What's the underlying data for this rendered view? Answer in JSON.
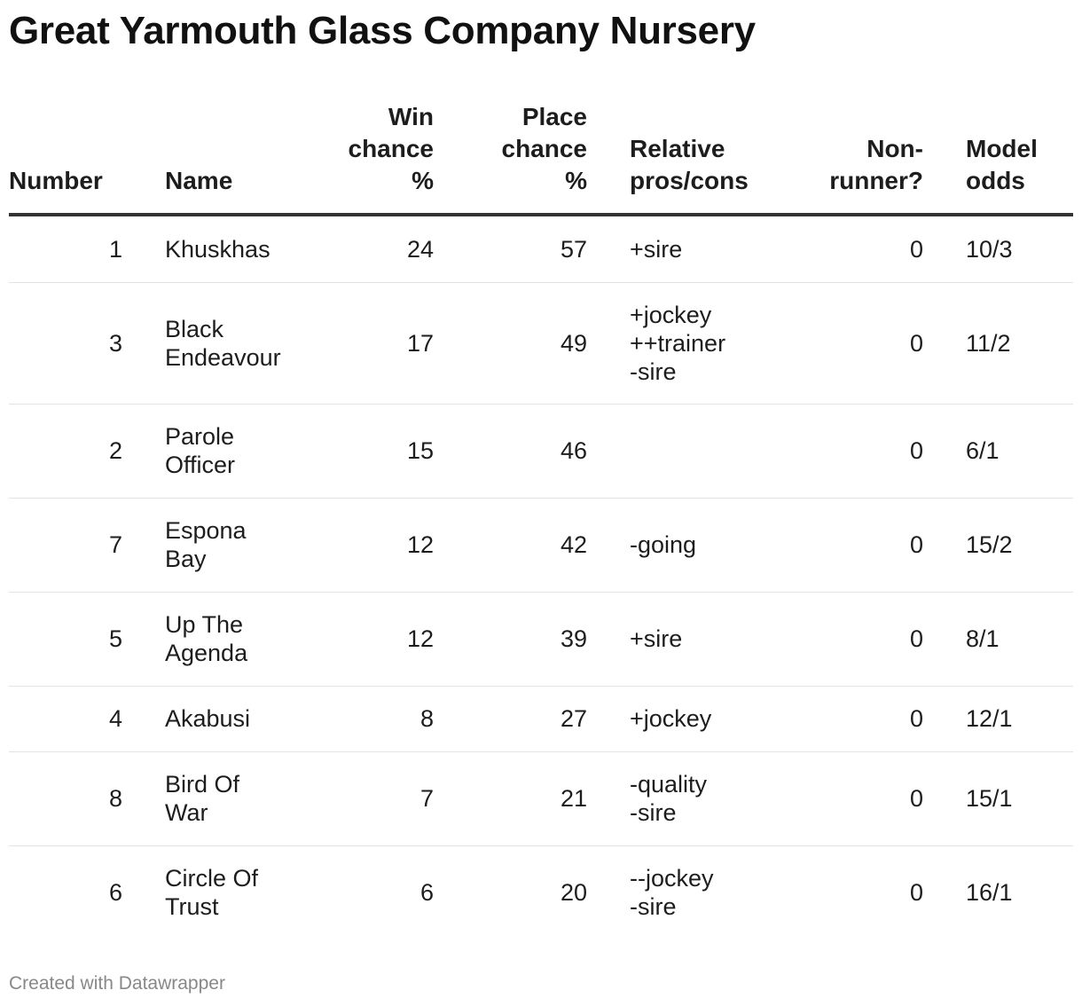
{
  "chart_data": {
    "type": "table",
    "title": "Great Yarmouth Glass Company Nursery",
    "columns": [
      "Number",
      "Name",
      "Win chance %",
      "Place chance %",
      "Relative pros/cons",
      "Non-runner?",
      "Model odds"
    ],
    "rows": [
      {
        "number": "1",
        "name": "Khuskhas",
        "win": "24",
        "place": "57",
        "pros": "+sire",
        "nonrunner": "0",
        "odds": "10/3"
      },
      {
        "number": "3",
        "name": "Black\nEndeavour",
        "win": "17",
        "place": "49",
        "pros": "+jockey\n++trainer\n-sire",
        "nonrunner": "0",
        "odds": "11/2"
      },
      {
        "number": "2",
        "name": "Parole\nOfficer",
        "win": "15",
        "place": "46",
        "pros": "",
        "nonrunner": "0",
        "odds": "6/1"
      },
      {
        "number": "7",
        "name": "Espona\nBay",
        "win": "12",
        "place": "42",
        "pros": "-going",
        "nonrunner": "0",
        "odds": "15/2"
      },
      {
        "number": "5",
        "name": "Up The\nAgenda",
        "win": "12",
        "place": "39",
        "pros": "+sire",
        "nonrunner": "0",
        "odds": "8/1"
      },
      {
        "number": "4",
        "name": "Akabusi",
        "win": "8",
        "place": "27",
        "pros": "+jockey",
        "nonrunner": "0",
        "odds": "12/1"
      },
      {
        "number": "8",
        "name": "Bird Of\nWar",
        "win": "7",
        "place": "21",
        "pros": "-quality\n-sire",
        "nonrunner": "0",
        "odds": "15/1"
      },
      {
        "number": "6",
        "name": "Circle Of\nTrust",
        "win": "6",
        "place": "20",
        "pros": "--jockey\n-sire",
        "nonrunner": "0",
        "odds": "16/1"
      }
    ]
  },
  "header": {
    "number": "Number",
    "name": "Name",
    "win": "Win\nchance\n%",
    "place": "Place\nchance\n%",
    "pros": "Relative\npros/cons",
    "nonrunner": "Non-\nrunner?",
    "odds": "Model\nodds"
  },
  "footer": {
    "credit": "Created with Datawrapper"
  }
}
